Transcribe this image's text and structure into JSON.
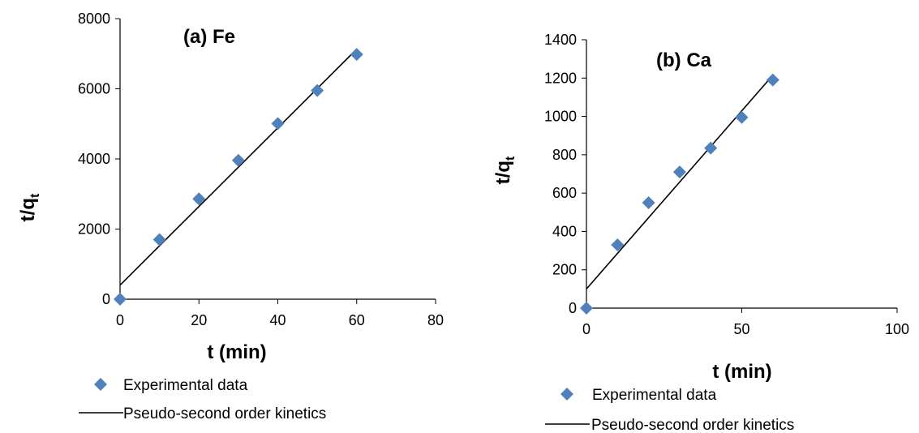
{
  "chart_data": [
    {
      "type": "scatter",
      "title": "(a) Fe",
      "xlabel": "t (min)",
      "ylabel_main": "t/q",
      "ylabel_sub": "t",
      "xlim": [
        0,
        80
      ],
      "ylim": [
        0,
        8000
      ],
      "xticks": [
        0,
        20,
        40,
        60,
        80
      ],
      "yticks": [
        0,
        2000,
        4000,
        6000,
        8000
      ],
      "grid": false,
      "legend_position": "bottom",
      "series": [
        {
          "name": "Experimental data",
          "kind": "markers",
          "marker": "diamond",
          "color": "#4F81BD",
          "x": [
            0,
            10,
            20,
            30,
            40,
            50,
            60
          ],
          "y": [
            0,
            1700,
            2860,
            3960,
            5010,
            5950,
            6980
          ]
        },
        {
          "name": "Pseudo-second order kinetics",
          "kind": "line",
          "color": "#000000",
          "x": [
            0,
            60
          ],
          "y": [
            400,
            7130
          ]
        }
      ]
    },
    {
      "type": "scatter",
      "title": "(b) Ca",
      "xlabel": "t (min)",
      "ylabel_main": "t/q",
      "ylabel_sub": "t",
      "xlim": [
        0,
        100
      ],
      "ylim": [
        0,
        1400
      ],
      "xticks": [
        0,
        50,
        100
      ],
      "yticks": [
        0,
        200,
        400,
        600,
        800,
        1000,
        1200,
        1400
      ],
      "grid": false,
      "legend_position": "bottom",
      "series": [
        {
          "name": "Experimental data",
          "kind": "markers",
          "marker": "diamond",
          "color": "#4F81BD",
          "x": [
            0,
            10,
            20,
            30,
            40,
            50,
            60
          ],
          "y": [
            0,
            330,
            550,
            710,
            835,
            995,
            1190
          ]
        },
        {
          "name": "Pseudo-second order kinetics",
          "kind": "line",
          "color": "#000000",
          "x": [
            0,
            60
          ],
          "y": [
            100,
            1215
          ]
        }
      ]
    }
  ]
}
